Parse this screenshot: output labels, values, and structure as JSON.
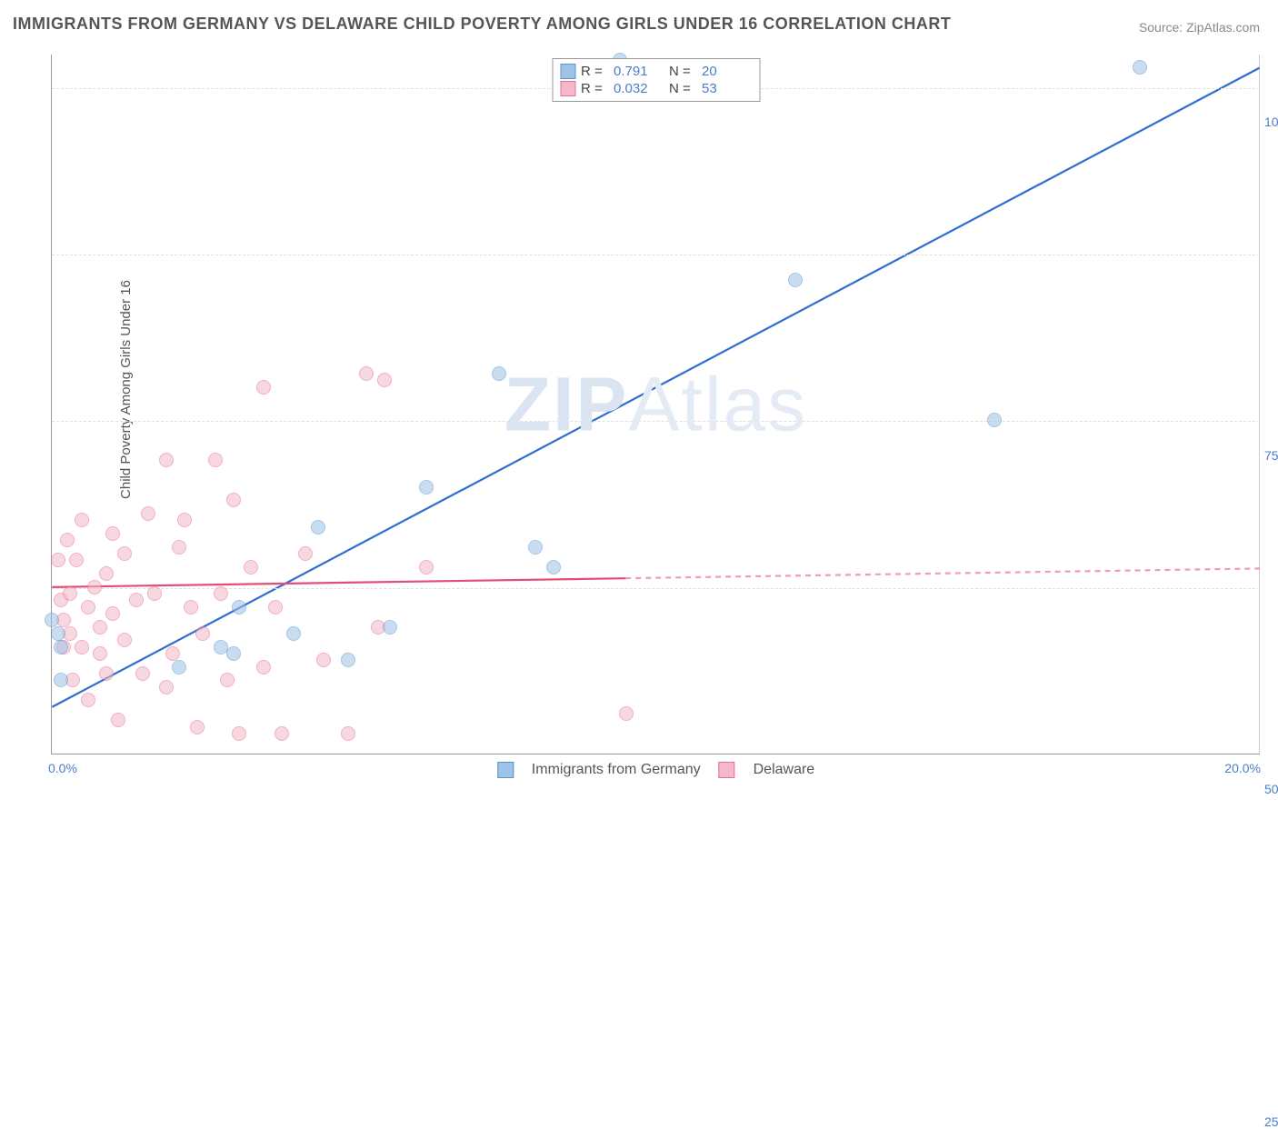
{
  "title": "IMMIGRANTS FROM GERMANY VS DELAWARE CHILD POVERTY AMONG GIRLS UNDER 16 CORRELATION CHART",
  "source": "Source: ZipAtlas.com",
  "ylabel": "Child Poverty Among Girls Under 16",
  "watermark": {
    "bold": "ZIP",
    "thin": "Atlas"
  },
  "chart": {
    "type": "scatter",
    "xlim": [
      0,
      20
    ],
    "ylim": [
      0,
      105
    ],
    "ytick_step": 25,
    "ytick_max": 100,
    "x_ticks": [
      0,
      20
    ],
    "background_color": "#ffffff",
    "grid_color": "#e0e0e0",
    "axis_color": "#999999",
    "tick_label_color": "#4a7ec9",
    "tick_fontsize": 14,
    "label_fontsize": 15,
    "title_fontsize": 18,
    "title_color": "#555555",
    "point_radius": 8,
    "point_opacity": 0.55
  },
  "series": [
    {
      "name": "Immigrants from Germany",
      "fill": "#9ec3e6",
      "stroke": "#5a93cf",
      "line_stroke": "#2f6fd0",
      "line_width": 2.2,
      "legend": {
        "R_label": "R =",
        "R": "0.791",
        "N_label": "N =",
        "N": "20"
      },
      "regression": {
        "x1": 0,
        "y1": 7,
        "x2": 20,
        "y2": 103
      },
      "points": [
        {
          "x": 0.0,
          "y": 20
        },
        {
          "x": 0.1,
          "y": 18
        },
        {
          "x": 0.15,
          "y": 16
        },
        {
          "x": 0.15,
          "y": 11
        },
        {
          "x": 2.1,
          "y": 13
        },
        {
          "x": 2.8,
          "y": 16
        },
        {
          "x": 3.0,
          "y": 15
        },
        {
          "x": 3.1,
          "y": 22
        },
        {
          "x": 4.0,
          "y": 18
        },
        {
          "x": 4.4,
          "y": 34
        },
        {
          "x": 4.9,
          "y": 14
        },
        {
          "x": 5.6,
          "y": 19
        },
        {
          "x": 6.2,
          "y": 40
        },
        {
          "x": 7.4,
          "y": 57
        },
        {
          "x": 8.0,
          "y": 31
        },
        {
          "x": 8.3,
          "y": 28
        },
        {
          "x": 9.4,
          "y": 104
        },
        {
          "x": 12.3,
          "y": 71
        },
        {
          "x": 15.6,
          "y": 50
        },
        {
          "x": 18.0,
          "y": 103
        }
      ]
    },
    {
      "name": "Delaware",
      "fill": "#f4b9c8",
      "stroke": "#e86f8f",
      "line_stroke": "#e34d77",
      "line_width": 2.2,
      "legend": {
        "R_label": "R =",
        "R": "0.032",
        "N_label": "N =",
        "N": "53"
      },
      "regression": {
        "x1": 0,
        "y1": 25,
        "x2": 20,
        "y2": 27.8,
        "solid_until_x": 9.5
      },
      "points": [
        {
          "x": 0.1,
          "y": 29
        },
        {
          "x": 0.15,
          "y": 23
        },
        {
          "x": 0.2,
          "y": 20
        },
        {
          "x": 0.2,
          "y": 16
        },
        {
          "x": 0.25,
          "y": 32
        },
        {
          "x": 0.3,
          "y": 18
        },
        {
          "x": 0.3,
          "y": 24
        },
        {
          "x": 0.35,
          "y": 11
        },
        {
          "x": 0.4,
          "y": 29
        },
        {
          "x": 0.5,
          "y": 16
        },
        {
          "x": 0.5,
          "y": 35
        },
        {
          "x": 0.6,
          "y": 22
        },
        {
          "x": 0.6,
          "y": 8
        },
        {
          "x": 0.7,
          "y": 25
        },
        {
          "x": 0.8,
          "y": 19
        },
        {
          "x": 0.8,
          "y": 15
        },
        {
          "x": 0.9,
          "y": 27
        },
        {
          "x": 0.9,
          "y": 12
        },
        {
          "x": 1.0,
          "y": 33
        },
        {
          "x": 1.0,
          "y": 21
        },
        {
          "x": 1.1,
          "y": 5
        },
        {
          "x": 1.2,
          "y": 17
        },
        {
          "x": 1.2,
          "y": 30
        },
        {
          "x": 1.4,
          "y": 23
        },
        {
          "x": 1.5,
          "y": 12
        },
        {
          "x": 1.6,
          "y": 36
        },
        {
          "x": 1.7,
          "y": 24
        },
        {
          "x": 1.9,
          "y": 44
        },
        {
          "x": 1.9,
          "y": 10
        },
        {
          "x": 2.0,
          "y": 15
        },
        {
          "x": 2.1,
          "y": 31
        },
        {
          "x": 2.2,
          "y": 35
        },
        {
          "x": 2.3,
          "y": 22
        },
        {
          "x": 2.4,
          "y": 4
        },
        {
          "x": 2.5,
          "y": 18
        },
        {
          "x": 2.7,
          "y": 44
        },
        {
          "x": 2.8,
          "y": 24
        },
        {
          "x": 2.9,
          "y": 11
        },
        {
          "x": 3.0,
          "y": 38
        },
        {
          "x": 3.1,
          "y": 3
        },
        {
          "x": 3.3,
          "y": 28
        },
        {
          "x": 3.5,
          "y": 55
        },
        {
          "x": 3.5,
          "y": 13
        },
        {
          "x": 3.7,
          "y": 22
        },
        {
          "x": 3.8,
          "y": 3
        },
        {
          "x": 4.2,
          "y": 30
        },
        {
          "x": 4.5,
          "y": 14
        },
        {
          "x": 4.9,
          "y": 3
        },
        {
          "x": 5.2,
          "y": 57
        },
        {
          "x": 5.4,
          "y": 19
        },
        {
          "x": 5.5,
          "y": 56
        },
        {
          "x": 6.2,
          "y": 28
        },
        {
          "x": 9.5,
          "y": 6
        }
      ]
    }
  ],
  "bottom_legend": [
    {
      "swatch_fill": "#9ec3e6",
      "swatch_stroke": "#5a93cf",
      "label": "Immigrants from Germany"
    },
    {
      "swatch_fill": "#f4b9c8",
      "swatch_stroke": "#e86f8f",
      "label": "Delaware"
    }
  ]
}
